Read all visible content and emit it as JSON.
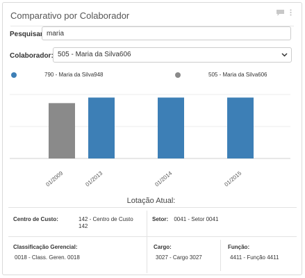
{
  "title": "Comparativo por Colaborador",
  "search": {
    "label": "Pesquisar:",
    "value": "maria"
  },
  "collaborator": {
    "label": "Colaborador:",
    "selected": "505 - Maria da Silva606"
  },
  "legend": [
    {
      "name": "790 - Maria da Silva948",
      "color": "#3d7fb6"
    },
    {
      "name": "505 - Maria da Silva606",
      "color": "#8a8a8a"
    }
  ],
  "chart_data": {
    "type": "bar",
    "categories": [
      "01/2009",
      "01/2013",
      "01/2014",
      "01/2015"
    ],
    "series": [
      {
        "name": "505 - Maria da Silva606",
        "color": "#8a8a8a",
        "values": [
          1,
          null,
          null,
          null
        ]
      },
      {
        "name": "790 - Maria da Silva948",
        "color": "#3d7fb6",
        "values": [
          null,
          1,
          1,
          1
        ]
      }
    ],
    "ylim": [
      0,
      1.05
    ],
    "grid": true
  },
  "lotacao": {
    "title": "Lotação Atual:",
    "centro_custo_label": "Centro de Custo:",
    "centro_custo_value_line1": "142 - Centro de Custo",
    "centro_custo_value_line2": "142",
    "setor_label": "Setor:",
    "setor_value": "0041 - Setor 0041",
    "class_label": "Classificação Gerencial:",
    "class_value": "0018 - Class. Geren. 0018",
    "cargo_label": "Cargo:",
    "cargo_value": "3027 - Cargo 3027",
    "funcao_label": "Função:",
    "funcao_value": "4411 - Função 4411"
  },
  "icons": {
    "comment": "comment-icon",
    "more": "more-vertical-icon",
    "chevron": "chevron-down-icon"
  }
}
